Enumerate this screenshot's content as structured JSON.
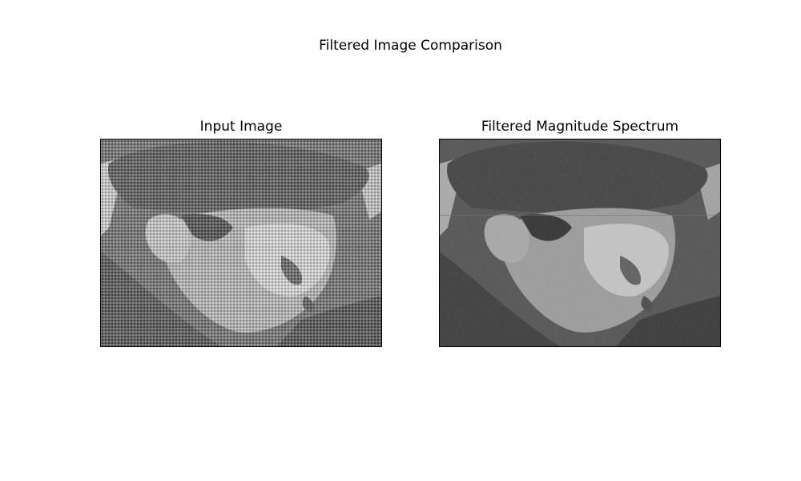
{
  "figure": {
    "title": "Filtered Image Comparison"
  },
  "panels": [
    {
      "title": "Input Image",
      "image_subject": "grayscale halftone newspaper photo of a man in a beret, looking down to the right",
      "style": "halftone-dotted"
    },
    {
      "title": "Filtered Magnitude Spectrum",
      "image_subject": "same photo with halftone dot pattern removed, smoother grayscale",
      "style": "smooth-filtered"
    }
  ],
  "colors": {
    "background": "#ffffff",
    "frame": "#000000"
  }
}
